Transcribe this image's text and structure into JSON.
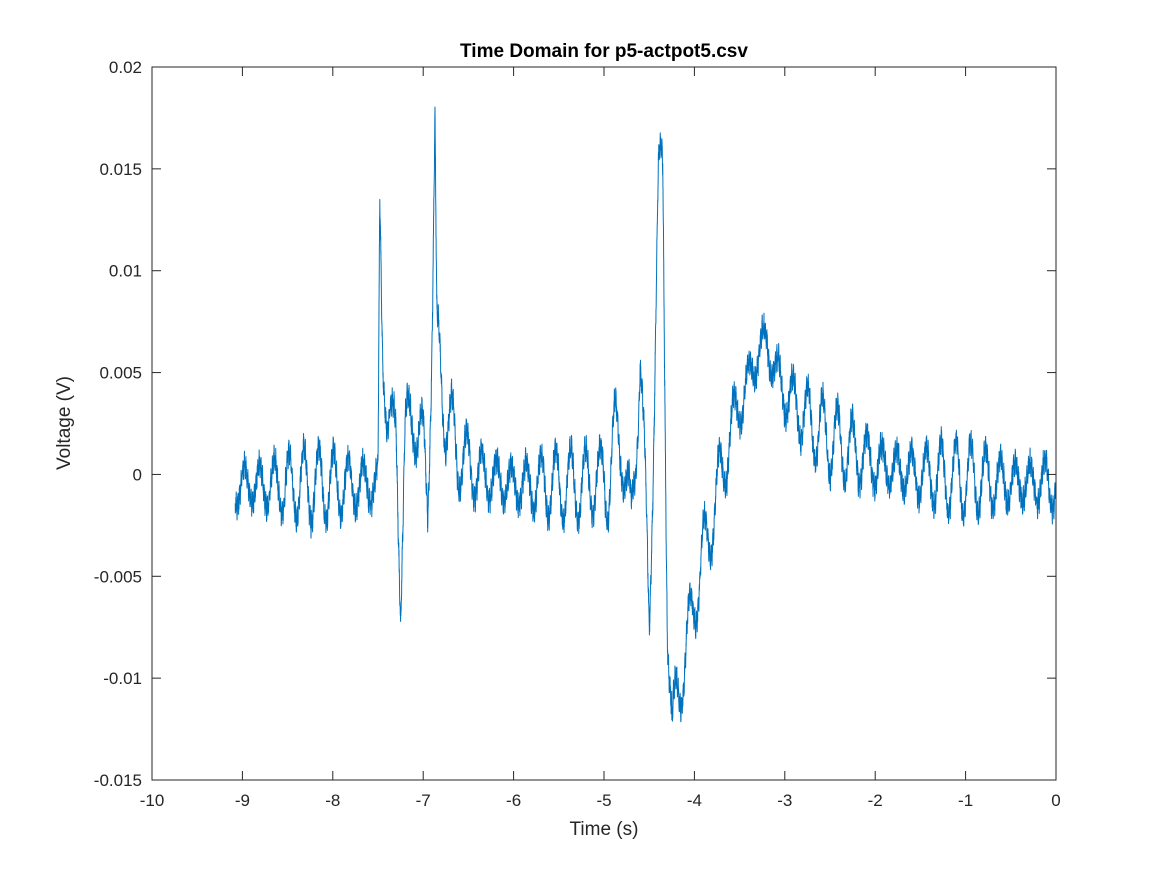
{
  "chart_data": {
    "type": "line",
    "title": "Time Domain for p5-actpot5.csv",
    "xlabel": "Time (s)",
    "ylabel": "Voltage (V)",
    "xlim": [
      -10,
      0
    ],
    "ylim": [
      -0.015,
      0.02
    ],
    "x_ticks": [
      "-10",
      "-9",
      "-8",
      "-7",
      "-6",
      "-5",
      "-4",
      "-3",
      "-2",
      "-1",
      "0"
    ],
    "y_ticks": [
      "-0.015",
      "-0.01",
      "-0.005",
      "0",
      "0.005",
      "0.01",
      "0.015",
      "0.02"
    ],
    "grid": false,
    "line_color": "#0072BD",
    "series": [
      {
        "x": [
          -9.08,
          -7.5,
          -7.48,
          -7.45,
          -7.4,
          -7.3,
          -7.25,
          -7.2,
          -7.1,
          -7.0,
          -6.95,
          -6.9,
          -6.87,
          -6.85,
          -6.8,
          -6.75,
          -6.7,
          -6.6,
          -6.4,
          -6.0,
          -5.6,
          -5.2,
          -5.0,
          -4.9,
          -4.8,
          -4.7,
          -4.6,
          -4.5,
          -4.4,
          -4.35,
          -4.3,
          -4.25,
          -4.2,
          -4.1,
          -4.0,
          -3.9,
          -3.8,
          -3.7,
          -3.6,
          -3.5,
          -3.4,
          -3.3,
          -3.2,
          -3.1,
          -3.0,
          -2.8,
          -2.6,
          -2.4,
          -2.2,
          -2.0,
          -1.5,
          -1.0,
          -0.5,
          0.0
        ],
        "y": [
          -0.0005,
          -0.0005,
          0.013,
          0.006,
          0.003,
          0.002,
          -0.006,
          0.002,
          0.003,
          0.001,
          -0.001,
          0.008,
          0.0165,
          0.006,
          0.005,
          0.003,
          0.002,
          0.001,
          0.0,
          -0.0005,
          -0.0005,
          -0.0005,
          0.0,
          0.001,
          0.002,
          -0.003,
          0.006,
          -0.007,
          0.013,
          0.0147,
          -0.005,
          -0.0128,
          -0.011,
          -0.009,
          -0.006,
          -0.004,
          -0.002,
          0.0,
          0.002,
          0.0035,
          0.0045,
          0.006,
          0.0065,
          0.005,
          0.004,
          0.003,
          0.002,
          0.0015,
          0.001,
          0.0005,
          0.0,
          -0.0002,
          -0.0004,
          -0.0004
        ]
      }
    ]
  }
}
